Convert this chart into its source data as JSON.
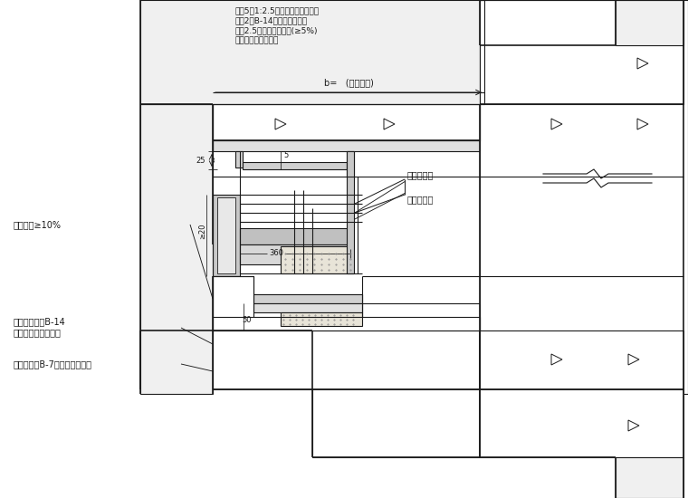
{
  "bg_color": "#ffffff",
  "lc": "#1a1a1a",
  "texts_top": [
    "抹灰5厚1:2.5钢刷木素砂浆找平层",
    "涂刷2遍B-14弹性木素防水层",
    "抹灰2.5木素砂浆找平层(≥5%)",
    "钢筋混凝土结构层板"
  ],
  "dim_b": "b=   (按设计定)",
  "label_seal": "密封胶嵌缝",
  "label_foam": "聚氨酯泡沫",
  "label_slope": "坡台坡度≥10%",
  "label_tile": "瓷砖粘贴胶凤B-14",
  "label_elastic": "弹性木素砂浆防水层",
  "label_membrane": "自粘聚酯胎B-7复了板防水涂层",
  "dim_25": "25",
  "dim_5": "5",
  "dim_200": "≥20",
  "dim_360": "360",
  "dim_50": "50"
}
